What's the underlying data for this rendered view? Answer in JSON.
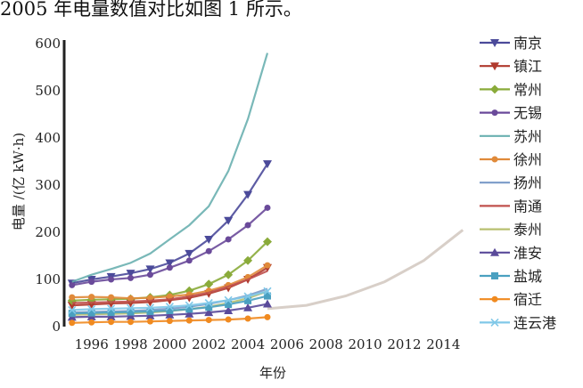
{
  "caption": "2005 年电量数值对比如图 1 所示。",
  "chart_data": {
    "type": "line",
    "title": "",
    "xlabel": "年份",
    "ylabel": "电量 /(亿 kW·h)",
    "xlim": [
      1994.6,
      2015.4
    ],
    "ylim": [
      0,
      600
    ],
    "x_ticks": [
      "1996",
      "1998",
      "2000",
      "2002",
      "2004",
      "2006",
      "2008",
      "2010",
      "2012",
      "2014"
    ],
    "y_ticks": [
      "0",
      "100",
      "200",
      "300",
      "400",
      "500",
      "600"
    ],
    "grid": false,
    "legend_position": "right",
    "x": [
      1995,
      1996,
      1997,
      1998,
      1999,
      2000,
      2001,
      2002,
      2003,
      2004,
      2005
    ],
    "series": [
      {
        "name": "南京",
        "color": "#4b4a9a",
        "marker": "tri-down",
        "values": [
          92,
          100,
          106,
          113,
          122,
          135,
          155,
          185,
          225,
          280,
          345
        ]
      },
      {
        "name": "镇江",
        "color": "#b03a2e",
        "marker": "tri-down",
        "values": [
          45,
          47,
          49,
          50,
          52,
          56,
          61,
          70,
          82,
          100,
          125
        ]
      },
      {
        "name": "常州",
        "color": "#8aab3a",
        "marker": "diamond",
        "values": [
          55,
          57,
          58,
          59,
          62,
          67,
          76,
          90,
          110,
          140,
          180
        ]
      },
      {
        "name": "无锡",
        "color": "#6a4a9a",
        "marker": "circle",
        "values": [
          88,
          95,
          100,
          103,
          110,
          125,
          140,
          160,
          185,
          215,
          252
        ]
      },
      {
        "name": "苏州",
        "color": "#6ab0b0",
        "marker": "none",
        "values": [
          95,
          110,
          122,
          135,
          155,
          185,
          215,
          255,
          330,
          440,
          580
        ]
      },
      {
        "name": "徐州",
        "color": "#e08a3a",
        "marker": "circle",
        "values": [
          62,
          63,
          62,
          60,
          61,
          64,
          68,
          76,
          88,
          105,
          130
        ]
      },
      {
        "name": "扬州",
        "color": "#7a9ac8",
        "marker": "none",
        "values": [
          30,
          31,
          32,
          33,
          35,
          38,
          42,
          48,
          56,
          66,
          80
        ]
      },
      {
        "name": "南通",
        "color": "#c0504d",
        "marker": "none",
        "values": [
          50,
          51,
          52,
          53,
          55,
          58,
          64,
          72,
          85,
          100,
          118
        ]
      },
      {
        "name": "泰州",
        "color": "#b8c070",
        "marker": "none",
        "values": [
          25,
          26,
          27,
          28,
          30,
          33,
          37,
          42,
          50,
          60,
          75
        ]
      },
      {
        "name": "淮安",
        "color": "#5a4a9a",
        "marker": "tri-up",
        "values": [
          20,
          21,
          21,
          22,
          23,
          25,
          27,
          30,
          34,
          40,
          48
        ]
      },
      {
        "name": "盐城",
        "color": "#4aa0c0",
        "marker": "square",
        "values": [
          28,
          29,
          30,
          31,
          32,
          34,
          37,
          41,
          47,
          55,
          65
        ]
      },
      {
        "name": "宿迁",
        "color": "#f08a20",
        "marker": "circle",
        "values": [
          8,
          9,
          10,
          10,
          11,
          12,
          13,
          14,
          15,
          17,
          20
        ]
      },
      {
        "name": "连云港",
        "color": "#80c8e8",
        "marker": "cross",
        "values": [
          35,
          37,
          38,
          39,
          40,
          42,
          45,
          50,
          56,
          64,
          75
        ]
      }
    ]
  }
}
